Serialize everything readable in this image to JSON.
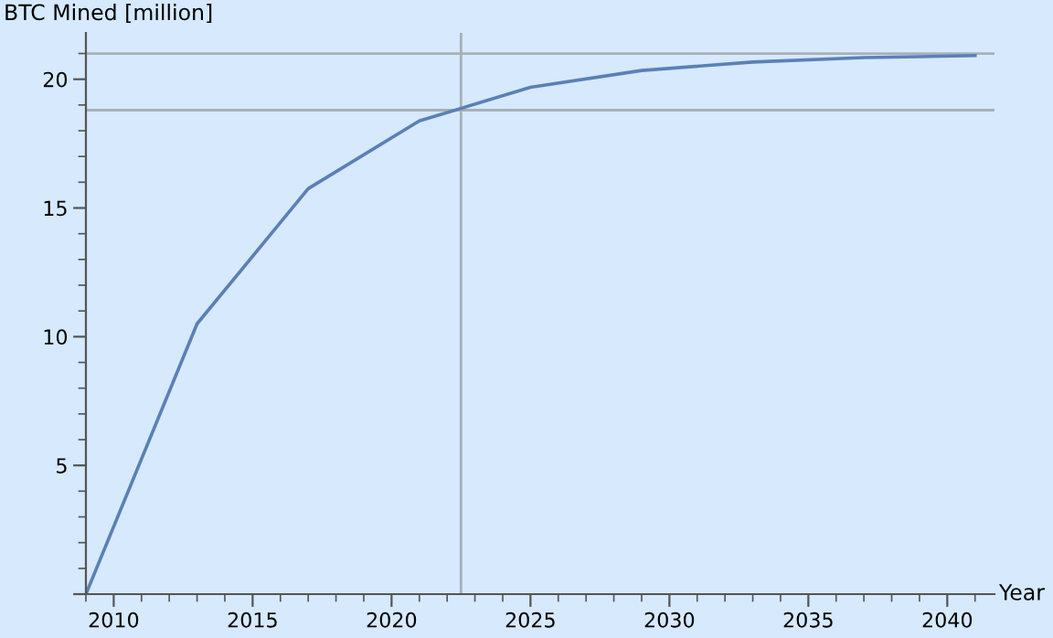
{
  "chart_data": {
    "type": "line",
    "xlabel": "Year",
    "ylabel": "BTC Mined [million]",
    "x": [
      2009,
      2013,
      2017,
      2021,
      2025,
      2029,
      2033,
      2037,
      2041
    ],
    "series": [
      {
        "color": "#5b80b6",
        "values": [
          0,
          10.5,
          15.75,
          18.38,
          19.69,
          20.34,
          20.67,
          20.84,
          20.92
        ]
      }
    ],
    "xlim": [
      2009,
      2041.7
    ],
    "ylim": [
      0,
      21.8
    ],
    "xticks": [
      2010,
      2015,
      2020,
      2025,
      2030,
      2035,
      2040
    ],
    "yticks": [
      {
        "value": 0,
        "label": null
      },
      5,
      10,
      15,
      20
    ],
    "ref_lines": [
      {
        "axis": "y",
        "value": 21,
        "color": "#aab0b8"
      },
      {
        "axis": "y",
        "value": 18.8,
        "color": "#aab0b8"
      },
      {
        "axis": "x",
        "value": 2022.5,
        "color": "#aab0b8"
      }
    ],
    "grid": false,
    "legend": false
  }
}
